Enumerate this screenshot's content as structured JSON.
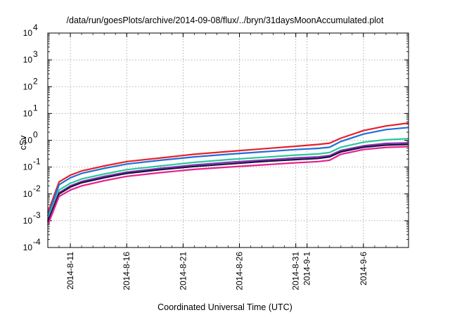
{
  "chart_data": {
    "type": "line",
    "title": "/data/run/goesPlots/archive/2014-09-08/flux/../bryn/31daysMoonAccumulated.plot",
    "xlabel": "Coordinated Universal Time (UTC)",
    "ylabel": "cSv",
    "yscale": "log",
    "ylim": [
      0.0001,
      10000
    ],
    "xlim": [
      "2014-08-09",
      "2014-09-10"
    ],
    "grid": true,
    "ytick_mantissa": "10",
    "yticks": [
      {
        "exp": "-4",
        "value": 0.0001
      },
      {
        "exp": "-3",
        "value": 0.001
      },
      {
        "exp": "-2",
        "value": 0.01
      },
      {
        "exp": "-1",
        "value": 0.1
      },
      {
        "exp": "0",
        "value": 1
      },
      {
        "exp": "1",
        "value": 10
      },
      {
        "exp": "2",
        "value": 100
      },
      {
        "exp": "3",
        "value": 1000
      },
      {
        "exp": "4",
        "value": 10000
      }
    ],
    "xticks": [
      {
        "label": "2014-8-11",
        "x": "2014-08-11"
      },
      {
        "label": "2014-8-16",
        "x": "2014-08-16"
      },
      {
        "label": "2014-8-21",
        "x": "2014-08-21"
      },
      {
        "label": "2014-8-26",
        "x": "2014-08-26"
      },
      {
        "label": "2014-8-31",
        "x": "2014-08-31"
      },
      {
        "label": "2014-9-1",
        "x": "2014-09-01"
      },
      {
        "label": "2014-9-6",
        "x": "2014-09-06"
      }
    ],
    "series": [
      {
        "color": "#e8202a",
        "x": [
          "2014-08-09",
          "2014-08-10",
          "2014-08-11",
          "2014-08-12",
          "2014-08-14",
          "2014-08-16",
          "2014-08-19",
          "2014-08-22",
          "2014-08-25",
          "2014-08-28",
          "2014-08-31",
          "2014-09-02",
          "2014-09-03",
          "2014-09-04",
          "2014-09-06",
          "2014-09-08",
          "2014-09-10"
        ],
        "y": [
          0.002,
          0.028,
          0.05,
          0.072,
          0.11,
          0.16,
          0.22,
          0.3,
          0.38,
          0.48,
          0.6,
          0.7,
          0.78,
          1.2,
          2.3,
          3.4,
          4.4
        ]
      },
      {
        "color": "#1f6fd8",
        "x": [
          "2014-08-09",
          "2014-08-10",
          "2014-08-11",
          "2014-08-12",
          "2014-08-14",
          "2014-08-16",
          "2014-08-19",
          "2014-08-22",
          "2014-08-25",
          "2014-08-28",
          "2014-08-31",
          "2014-09-02",
          "2014-09-03",
          "2014-09-04",
          "2014-09-06",
          "2014-09-08",
          "2014-09-10"
        ],
        "y": [
          0.0015,
          0.022,
          0.04,
          0.058,
          0.09,
          0.13,
          0.18,
          0.24,
          0.3,
          0.37,
          0.45,
          0.5,
          0.55,
          0.9,
          1.7,
          2.5,
          3.0
        ]
      },
      {
        "color": "#2bc79a",
        "x": [
          "2014-08-09",
          "2014-08-10",
          "2014-08-11",
          "2014-08-12",
          "2014-08-14",
          "2014-08-16",
          "2014-08-19",
          "2014-08-22",
          "2014-08-25",
          "2014-08-28",
          "2014-08-31",
          "2014-09-02",
          "2014-09-03",
          "2014-09-04",
          "2014-09-06",
          "2014-09-08",
          "2014-09-10"
        ],
        "y": [
          0.0012,
          0.014,
          0.025,
          0.036,
          0.055,
          0.08,
          0.11,
          0.15,
          0.19,
          0.23,
          0.28,
          0.31,
          0.35,
          0.55,
          0.85,
          1.05,
          1.15
        ]
      },
      {
        "color": "#8b2fb3",
        "x": [
          "2014-08-09",
          "2014-08-10",
          "2014-08-11",
          "2014-08-12",
          "2014-08-14",
          "2014-08-16",
          "2014-08-19",
          "2014-08-22",
          "2014-08-25",
          "2014-08-28",
          "2014-08-31",
          "2014-09-02",
          "2014-09-03",
          "2014-09-04",
          "2014-09-06",
          "2014-09-08",
          "2014-09-10"
        ],
        "y": [
          0.001,
          0.011,
          0.02,
          0.029,
          0.045,
          0.065,
          0.09,
          0.12,
          0.15,
          0.18,
          0.22,
          0.24,
          0.27,
          0.42,
          0.62,
          0.76,
          0.8
        ]
      },
      {
        "color": "#151540",
        "x": [
          "2014-08-09",
          "2014-08-10",
          "2014-08-11",
          "2014-08-12",
          "2014-08-14",
          "2014-08-16",
          "2014-08-19",
          "2014-08-22",
          "2014-08-25",
          "2014-08-28",
          "2014-08-31",
          "2014-09-02",
          "2014-09-03",
          "2014-09-04",
          "2014-09-06",
          "2014-09-08",
          "2014-09-10"
        ],
        "y": [
          0.0009,
          0.01,
          0.018,
          0.026,
          0.04,
          0.058,
          0.08,
          0.105,
          0.13,
          0.16,
          0.19,
          0.21,
          0.24,
          0.37,
          0.55,
          0.66,
          0.7
        ]
      },
      {
        "color": "#e8208c",
        "x": [
          "2014-08-09",
          "2014-08-10",
          "2014-08-11",
          "2014-08-12",
          "2014-08-14",
          "2014-08-16",
          "2014-08-19",
          "2014-08-22",
          "2014-08-25",
          "2014-08-28",
          "2014-08-31",
          "2014-09-02",
          "2014-09-03",
          "2014-09-04",
          "2014-09-06",
          "2014-09-08",
          "2014-09-10"
        ],
        "y": [
          0.0007,
          0.008,
          0.014,
          0.02,
          0.031,
          0.045,
          0.062,
          0.082,
          0.1,
          0.12,
          0.145,
          0.16,
          0.18,
          0.3,
          0.45,
          0.54,
          0.58
        ]
      }
    ]
  }
}
